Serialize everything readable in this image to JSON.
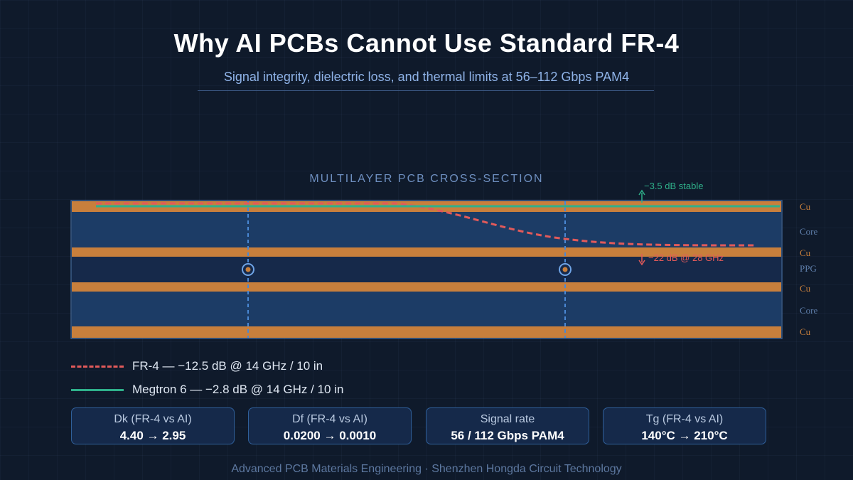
{
  "header": {
    "title": "Why AI PCBs Cannot Use Standard FR-4",
    "subtitle": "Signal integrity, dielectric loss, and thermal limits at 56–112 Gbps PAM4"
  },
  "diagram": {
    "section_title": "MULTILAYER PCB CROSS-SECTION",
    "layers": [
      {
        "label": "Cu",
        "type": "copper"
      },
      {
        "label": "Core",
        "type": "core"
      },
      {
        "label": "Cu",
        "type": "copper"
      },
      {
        "label": "PPG",
        "type": "prepreg"
      },
      {
        "label": "Cu",
        "type": "copper"
      },
      {
        "label": "Core",
        "type": "core"
      },
      {
        "label": "Cu",
        "type": "copper"
      }
    ],
    "annotations": {
      "megtron_note": "−3.5 dB stable",
      "fr4_note": "−22 dB @ 28 GHz"
    },
    "colors": {
      "copper": "#c87f3c",
      "core": "#1c3c66",
      "prepreg": "#16294a",
      "via": "#4a88d4",
      "fr4_trace": "#e25a5a",
      "megtron_trace": "#2fb08a"
    }
  },
  "legend": [
    {
      "name": "FR-4 — −12.5 dB @ 14 GHz / 10 in",
      "style": "dashed"
    },
    {
      "name": "Megtron 6 — −2.8 dB @ 14 GHz / 10 in",
      "style": "solid"
    }
  ],
  "metrics": [
    {
      "label": "Dk (FR-4 vs AI)",
      "value": "4.40 → 2.95"
    },
    {
      "label": "Df (FR-4 vs AI)",
      "value": "0.0200 → 0.0010"
    },
    {
      "label": "Signal rate",
      "value": "56 / 112 Gbps PAM4"
    },
    {
      "label": "Tg (FR-4 vs AI)",
      "value": "140°C → 210°C"
    }
  ],
  "footer": "Advanced PCB Materials Engineering · Shenzhen Hongda Circuit Technology"
}
